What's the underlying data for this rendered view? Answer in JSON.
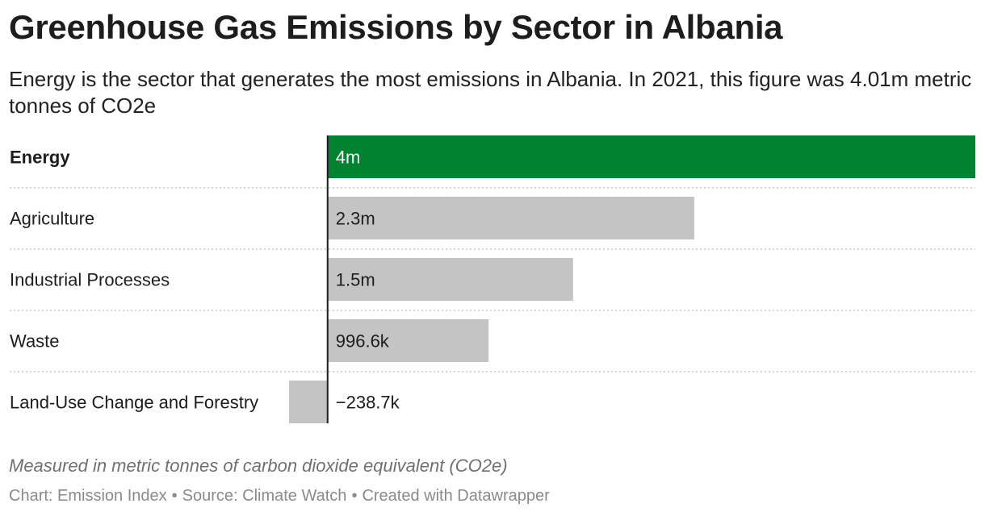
{
  "chart_data": {
    "type": "bar",
    "orientation": "horizontal",
    "title": "Greenhouse Gas Emissions by Sector in Albania",
    "subtitle": "Energy is the sector that generates the most emissions in Albania. In 2021, this figure was 4.01m metric tonnes of CO2e",
    "categories": [
      "Energy",
      "Agriculture",
      "Industrial Processes",
      "Waste",
      "Land-Use Change and Forestry"
    ],
    "values": [
      4010000,
      2270000,
      1520000,
      996600,
      -238700
    ],
    "value_labels": [
      "4m",
      "2.3m",
      "1.5m",
      "996.6k",
      "−238.7k"
    ],
    "highlight": "Energy",
    "xlim": [
      -238700,
      4010000
    ],
    "grid": false,
    "notes": "Measured in metric tonnes of carbon dioxide equivalent (CO2e)"
  },
  "colors": {
    "highlight": "#008330",
    "default": "#c4c4c4",
    "axis": "#1d1d1d",
    "separator": "#c8c8c8"
  },
  "footer": {
    "chart_credit": "Chart: Emission Index",
    "source": "Source: Climate Watch",
    "created_with": "Created with Datawrapper",
    "separator": "•"
  }
}
